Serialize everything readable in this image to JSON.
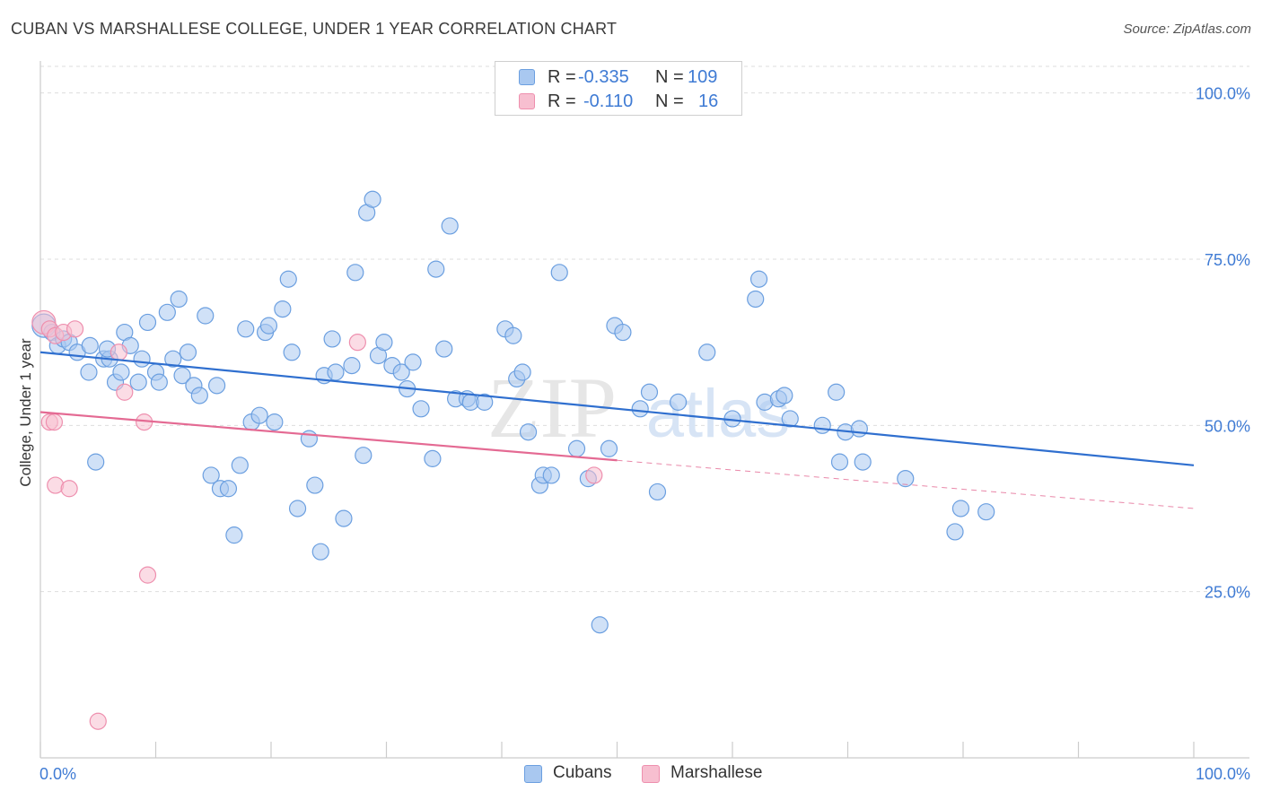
{
  "title": "CUBAN VS MARSHALLESE COLLEGE, UNDER 1 YEAR CORRELATION CHART",
  "source": "Source: ZipAtlas.com",
  "legend": {
    "rows": [
      {
        "r_label": "R =",
        "r_value": "-0.335",
        "n_label": "N =",
        "n_value": "109"
      },
      {
        "r_label": "R =",
        "r_value": "-0.110",
        "n_label": "N =",
        "n_value": "16"
      }
    ]
  },
  "bottom_legend": {
    "cubans": "Cubans",
    "marshallese": "Marshallese"
  },
  "watermark": {
    "zip": "ZIP",
    "atlas": "atlas"
  },
  "colors": {
    "cubans_fill": "#a9c8f0",
    "cubans_stroke": "#6b9fe0",
    "cubans_line": "#2f6fcf",
    "marshallese_fill": "#f7bfd0",
    "marshallese_stroke": "#ee8fae",
    "marshallese_line": "#e46a93",
    "axis_text": "#3f7bd4",
    "grid": "#dddddd"
  },
  "chart_data": {
    "type": "scatter",
    "title": "CUBAN VS MARSHALLESE COLLEGE, UNDER 1 YEAR CORRELATION CHART",
    "xlabel": "",
    "ylabel": "College, Under 1 year",
    "xlim": [
      0,
      100
    ],
    "ylim": [
      0,
      104
    ],
    "x_tick_labels": [
      "0.0%",
      "100.0%"
    ],
    "y_ticks": [
      25,
      50,
      75,
      100
    ],
    "y_tick_labels": [
      "25.0%",
      "50.0%",
      "75.0%",
      "100.0%"
    ],
    "grid": "horizontal dashed",
    "legend_position": "top-center",
    "series": [
      {
        "name": "Cubans",
        "R": -0.335,
        "N": 109,
        "trend": {
          "x": [
            0,
            100
          ],
          "y": [
            61.0,
            44.0
          ],
          "solid_until": 100
        },
        "points": [
          [
            0.3,
            65.0
          ],
          [
            1.0,
            64.0
          ],
          [
            1.5,
            62.0
          ],
          [
            2.0,
            63.0
          ],
          [
            2.5,
            62.5
          ],
          [
            3.2,
            61.0
          ],
          [
            4.3,
            62.0
          ],
          [
            4.2,
            58.0
          ],
          [
            5.5,
            60.0
          ],
          [
            6.0,
            60.0
          ],
          [
            5.8,
            61.5
          ],
          [
            6.5,
            56.5
          ],
          [
            7.0,
            58.0
          ],
          [
            7.3,
            64.0
          ],
          [
            7.8,
            62.0
          ],
          [
            8.5,
            56.5
          ],
          [
            8.8,
            60.0
          ],
          [
            9.3,
            65.5
          ],
          [
            10.0,
            58.0
          ],
          [
            10.3,
            56.5
          ],
          [
            11.0,
            67.0
          ],
          [
            11.5,
            60.0
          ],
          [
            12.0,
            69.0
          ],
          [
            12.3,
            57.5
          ],
          [
            12.8,
            61.0
          ],
          [
            13.3,
            56.0
          ],
          [
            13.8,
            54.5
          ],
          [
            14.3,
            66.5
          ],
          [
            14.8,
            42.5
          ],
          [
            15.3,
            56.0
          ],
          [
            15.6,
            40.5
          ],
          [
            16.3,
            40.5
          ],
          [
            16.8,
            33.5
          ],
          [
            17.3,
            44.0
          ],
          [
            17.8,
            64.5
          ],
          [
            18.3,
            50.5
          ],
          [
            19.0,
            51.5
          ],
          [
            19.5,
            64.0
          ],
          [
            19.8,
            65.0
          ],
          [
            20.3,
            50.5
          ],
          [
            21.0,
            67.5
          ],
          [
            21.5,
            72.0
          ],
          [
            21.8,
            61.0
          ],
          [
            22.3,
            37.5
          ],
          [
            23.3,
            48.0
          ],
          [
            23.8,
            41.0
          ],
          [
            24.3,
            31.0
          ],
          [
            24.6,
            57.5
          ],
          [
            25.3,
            63.0
          ],
          [
            25.6,
            58.0
          ],
          [
            26.3,
            36.0
          ],
          [
            27.0,
            59.0
          ],
          [
            27.3,
            73.0
          ],
          [
            28.0,
            45.5
          ],
          [
            28.3,
            82.0
          ],
          [
            28.8,
            84.0
          ],
          [
            29.3,
            60.5
          ],
          [
            29.8,
            62.5
          ],
          [
            30.5,
            59.0
          ],
          [
            31.3,
            58.0
          ],
          [
            31.8,
            55.5
          ],
          [
            32.3,
            59.5
          ],
          [
            33.0,
            52.5
          ],
          [
            34.0,
            45.0
          ],
          [
            34.3,
            73.5
          ],
          [
            35.0,
            61.5
          ],
          [
            35.5,
            80.0
          ],
          [
            36.0,
            54.0
          ],
          [
            37.0,
            54.0
          ],
          [
            37.3,
            53.5
          ],
          [
            38.5,
            53.5
          ],
          [
            40.3,
            64.5
          ],
          [
            41.0,
            63.5
          ],
          [
            41.3,
            57.0
          ],
          [
            41.8,
            58.0
          ],
          [
            42.3,
            49.0
          ],
          [
            43.3,
            41.0
          ],
          [
            43.6,
            42.5
          ],
          [
            44.3,
            42.5
          ],
          [
            45.0,
            73.0
          ],
          [
            46.5,
            46.5
          ],
          [
            47.5,
            42.0
          ],
          [
            48.5,
            20.0
          ],
          [
            49.3,
            46.5
          ],
          [
            49.8,
            65.0
          ],
          [
            50.5,
            64.0
          ],
          [
            52.0,
            52.5
          ],
          [
            52.8,
            55.0
          ],
          [
            53.5,
            40.0
          ],
          [
            55.3,
            53.5
          ],
          [
            57.8,
            61.0
          ],
          [
            60.0,
            51.0
          ],
          [
            62.0,
            69.0
          ],
          [
            62.3,
            72.0
          ],
          [
            62.8,
            53.5
          ],
          [
            64.0,
            54.0
          ],
          [
            64.5,
            54.5
          ],
          [
            65.0,
            51.0
          ],
          [
            67.8,
            50.0
          ],
          [
            69.0,
            55.0
          ],
          [
            69.3,
            44.5
          ],
          [
            69.8,
            49.0
          ],
          [
            71.3,
            44.5
          ],
          [
            71.0,
            49.5
          ],
          [
            75.0,
            42.0
          ],
          [
            79.3,
            34.0
          ],
          [
            79.8,
            37.5
          ],
          [
            82.0,
            37.0
          ],
          [
            4.8,
            44.5
          ]
        ]
      },
      {
        "name": "Marshallese",
        "R": -0.11,
        "N": 16,
        "trend": {
          "x": [
            0,
            100
          ],
          "y": [
            52.0,
            37.5
          ],
          "solid_until": 50
        },
        "points": [
          [
            0.3,
            65.5
          ],
          [
            0.8,
            64.5
          ],
          [
            1.3,
            63.5
          ],
          [
            2.0,
            64.0
          ],
          [
            3.0,
            64.5
          ],
          [
            0.8,
            50.5
          ],
          [
            1.2,
            50.5
          ],
          [
            1.3,
            41.0
          ],
          [
            2.5,
            40.5
          ],
          [
            6.8,
            61.0
          ],
          [
            7.3,
            55.0
          ],
          [
            9.0,
            50.5
          ],
          [
            9.3,
            27.5
          ],
          [
            5.0,
            5.5
          ],
          [
            27.5,
            62.5
          ],
          [
            48.0,
            42.5
          ]
        ]
      }
    ]
  }
}
